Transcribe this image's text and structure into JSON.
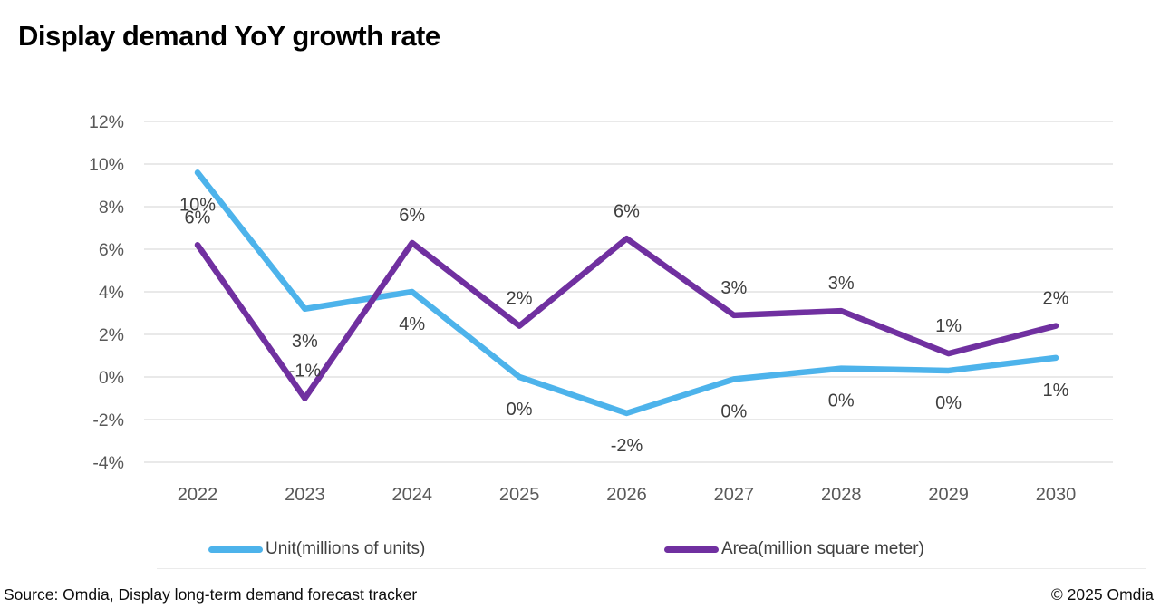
{
  "title": "Display demand YoY growth rate",
  "footer": {
    "source": "Source: Omdia, Display long-term demand forecast tracker",
    "copyright": "© 2025 Omdia"
  },
  "colors": {
    "unit_line": "#4DB3EB",
    "area_line": "#7030A0",
    "grid": "#DCDCDC",
    "axis_text": "#595959",
    "data_label_text": "#3F3F3F"
  },
  "chart_data": {
    "type": "line",
    "title": "Display demand YoY growth rate",
    "categories": [
      "2022",
      "2023",
      "2024",
      "2025",
      "2026",
      "2027",
      "2028",
      "2029",
      "2030"
    ],
    "xlabel": "",
    "ylabel": "",
    "ylim": [
      -4,
      12
    ],
    "grid": true,
    "legend_position": "bottom",
    "y_ticks": [
      {
        "value": 12,
        "label": "12%"
      },
      {
        "value": 10,
        "label": "10%"
      },
      {
        "value": 8,
        "label": "8%"
      },
      {
        "value": 6,
        "label": "6%"
      },
      {
        "value": 4,
        "label": "4%"
      },
      {
        "value": 2,
        "label": "2%"
      },
      {
        "value": 0,
        "label": "0%"
      },
      {
        "value": -2,
        "label": "-2%"
      },
      {
        "value": -4,
        "label": "-4%"
      }
    ],
    "series": [
      {
        "name": "Unit(millions of units)",
        "color": "#4DB3EB",
        "values": [
          9.6,
          3.2,
          4.0,
          0.0,
          -1.7,
          -0.1,
          0.4,
          0.3,
          0.9
        ],
        "labels": [
          "10%",
          "3%",
          "4%",
          "0%",
          "-2%",
          "0%",
          "0%",
          "0%",
          "1%"
        ],
        "label_placement": "below"
      },
      {
        "name": "Area(million square meter)",
        "color": "#7030A0",
        "values": [
          6.2,
          -1.0,
          6.3,
          2.4,
          6.5,
          2.9,
          3.1,
          1.1,
          2.4
        ],
        "labels": [
          "6%",
          "-1%",
          "6%",
          "2%",
          "6%",
          "3%",
          "3%",
          "1%",
          "2%"
        ],
        "label_placement": "above"
      }
    ]
  }
}
